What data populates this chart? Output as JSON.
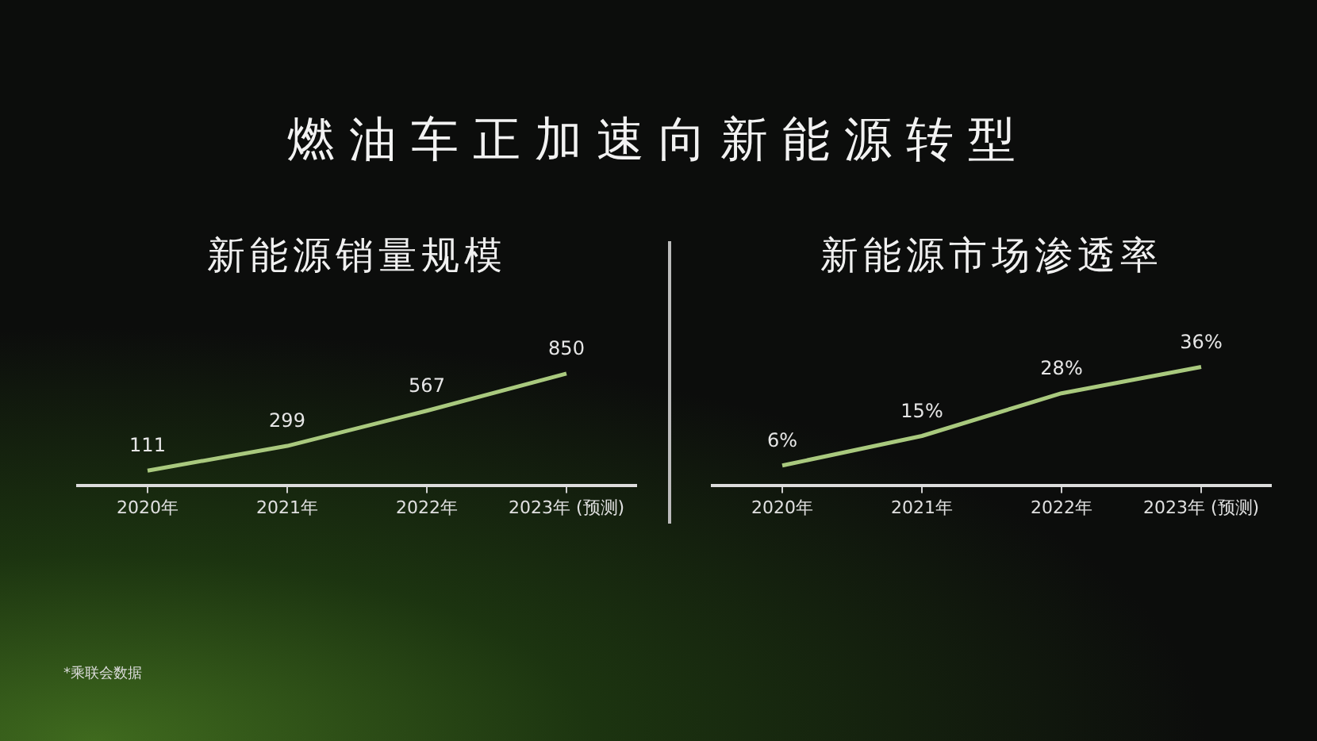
{
  "chart_data": [
    {
      "type": "line",
      "title": "新能源销量规模",
      "categories": [
        "2020年",
        "2021年",
        "2022年",
        "2023年 (预测)"
      ],
      "series": [
        {
          "color": "#a9c97e",
          "values": [
            111,
            299,
            567,
            850
          ]
        }
      ],
      "data_labels": true,
      "grid": false,
      "legend": false,
      "tick_labels": "x",
      "marker": "none",
      "annotations": [
        "燃油车正加速向新能源转型",
        "*乘联会数据"
      ]
    },
    {
      "type": "line",
      "title": "新能源市场渗透率",
      "categories": [
        "2020年",
        "2021年",
        "2022年",
        "2023年 (预测)"
      ],
      "series": [
        {
          "color": "#a9c97e",
          "values": [
            6,
            15,
            28,
            36
          ],
          "value_labels": [
            "6%",
            "15%",
            "28%",
            "36%"
          ]
        }
      ],
      "grid": false,
      "legend": false,
      "tick_labels": "x",
      "marker": "none"
    }
  ]
}
